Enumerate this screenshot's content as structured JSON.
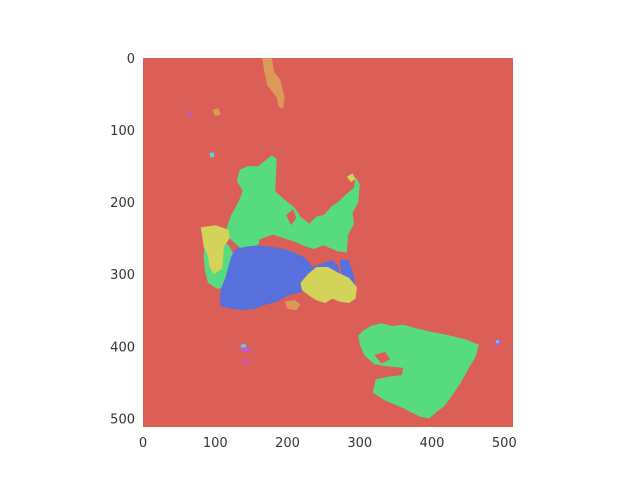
{
  "chart_data": {
    "type": "heatmap",
    "subtype": "segmentation-mask-image",
    "image_size": [
      512,
      512
    ],
    "xlim": [
      0,
      512
    ],
    "ylim": [
      512,
      0
    ],
    "x_ticks": [
      0,
      100,
      200,
      300,
      400,
      500
    ],
    "y_ticks": [
      0,
      100,
      200,
      300,
      400,
      500
    ],
    "x_tick_labels": [
      "0",
      "100",
      "200",
      "300",
      "400",
      "500"
    ],
    "y_tick_labels": [
      "0",
      "100",
      "200",
      "300",
      "400",
      "500"
    ],
    "grid": false,
    "background_class_color": "#db5f57",
    "class_colors": {
      "background": "#db5f57",
      "green": "#57db80",
      "blue": "#5770db",
      "yellow": "#d3d35a",
      "orange": "#db9a57",
      "magenta": "#c157db",
      "cyan": "#57d3db"
    },
    "regions": [
      {
        "class": "orange",
        "points": [
          [
            165,
            0
          ],
          [
            178,
            0
          ],
          [
            182,
            20
          ],
          [
            190,
            30
          ],
          [
            196,
            55
          ],
          [
            194,
            70
          ],
          [
            188,
            68
          ],
          [
            185,
            55
          ],
          [
            180,
            48
          ],
          [
            172,
            38
          ],
          [
            168,
            20
          ]
        ]
      },
      {
        "class": "green",
        "points": [
          [
            134,
            155
          ],
          [
            145,
            150
          ],
          [
            160,
            150
          ],
          [
            178,
            135
          ],
          [
            185,
            140
          ],
          [
            183,
            185
          ],
          [
            200,
            200
          ],
          [
            210,
            208
          ],
          [
            218,
            220
          ],
          [
            230,
            230
          ],
          [
            240,
            220
          ],
          [
            250,
            218
          ],
          [
            262,
            205
          ],
          [
            270,
            200
          ],
          [
            280,
            190
          ],
          [
            292,
            180
          ],
          [
            294,
            165
          ],
          [
            300,
            175
          ],
          [
            298,
            200
          ],
          [
            290,
            215
          ],
          [
            292,
            230
          ],
          [
            284,
            245
          ],
          [
            282,
            270
          ],
          [
            268,
            268
          ],
          [
            262,
            265
          ],
          [
            250,
            260
          ],
          [
            236,
            265
          ],
          [
            226,
            262
          ],
          [
            210,
            255
          ],
          [
            195,
            250
          ],
          [
            180,
            245
          ],
          [
            165,
            250
          ],
          [
            155,
            265
          ],
          [
            145,
            272
          ],
          [
            128,
            258
          ],
          [
            118,
            248
          ],
          [
            116,
            235
          ],
          [
            122,
            218
          ],
          [
            132,
            200
          ],
          [
            138,
            185
          ],
          [
            130,
            170
          ]
        ]
      },
      {
        "class": "background",
        "points": [
          [
            198,
            218
          ],
          [
            208,
            210
          ],
          [
            212,
            222
          ],
          [
            205,
            232
          ]
        ]
      },
      {
        "class": "green",
        "points": [
          [
            85,
            255
          ],
          [
            95,
            250
          ],
          [
            110,
            252
          ],
          [
            120,
            262
          ],
          [
            126,
            275
          ],
          [
            122,
            300
          ],
          [
            114,
            320
          ],
          [
            102,
            320
          ],
          [
            90,
            312
          ],
          [
            86,
            296
          ],
          [
            84,
            278
          ]
        ]
      },
      {
        "class": "yellow",
        "points": [
          [
            80,
            235
          ],
          [
            100,
            232
          ],
          [
            118,
            238
          ],
          [
            120,
            250
          ],
          [
            112,
            262
          ],
          [
            110,
            292
          ],
          [
            98,
            300
          ],
          [
            92,
            290
          ],
          [
            90,
            275
          ],
          [
            84,
            262
          ],
          [
            82,
            248
          ]
        ]
      },
      {
        "class": "background",
        "points": [
          [
            160,
            252
          ],
          [
            170,
            250
          ],
          [
            182,
            258
          ],
          [
            178,
            266
          ],
          [
            165,
            265
          ]
        ]
      },
      {
        "class": "blue",
        "points": [
          [
            128,
            265
          ],
          [
            142,
            262
          ],
          [
            158,
            260
          ],
          [
            175,
            262
          ],
          [
            192,
            264
          ],
          [
            210,
            270
          ],
          [
            225,
            278
          ],
          [
            235,
            290
          ],
          [
            248,
            285
          ],
          [
            262,
            280
          ],
          [
            270,
            288
          ],
          [
            272,
            300
          ],
          [
            268,
            318
          ],
          [
            260,
            323
          ],
          [
            250,
            318
          ],
          [
            240,
            322
          ],
          [
            228,
            320
          ],
          [
            215,
            326
          ],
          [
            200,
            330
          ],
          [
            186,
            338
          ],
          [
            170,
            342
          ],
          [
            155,
            348
          ],
          [
            140,
            350
          ],
          [
            122,
            348
          ],
          [
            108,
            345
          ],
          [
            106,
            335
          ],
          [
            108,
            320
          ],
          [
            114,
            305
          ],
          [
            118,
            290
          ],
          [
            122,
            276
          ]
        ]
      },
      {
        "class": "blue",
        "points": [
          [
            272,
            280
          ],
          [
            284,
            280
          ],
          [
            290,
            295
          ],
          [
            294,
            315
          ],
          [
            290,
            330
          ],
          [
            280,
            330
          ],
          [
            275,
            312
          ],
          [
            274,
            295
          ]
        ]
      },
      {
        "class": "yellow",
        "points": [
          [
            228,
            300
          ],
          [
            240,
            290
          ],
          [
            256,
            290
          ],
          [
            270,
            298
          ],
          [
            285,
            305
          ],
          [
            296,
            318
          ],
          [
            294,
            334
          ],
          [
            285,
            340
          ],
          [
            272,
            338
          ],
          [
            262,
            334
          ],
          [
            252,
            340
          ],
          [
            240,
            336
          ],
          [
            230,
            330
          ],
          [
            220,
            322
          ],
          [
            218,
            312
          ]
        ]
      },
      {
        "class": "orange",
        "points": [
          [
            196,
            338
          ],
          [
            210,
            336
          ],
          [
            218,
            342
          ],
          [
            212,
            350
          ],
          [
            200,
            348
          ]
        ]
      },
      {
        "class": "green",
        "points": [
          [
            305,
            378
          ],
          [
            315,
            372
          ],
          [
            330,
            368
          ],
          [
            345,
            372
          ],
          [
            360,
            370
          ],
          [
            378,
            375
          ],
          [
            398,
            380
          ],
          [
            420,
            384
          ],
          [
            445,
            390
          ],
          [
            465,
            398
          ],
          [
            460,
            415
          ],
          [
            450,
            432
          ],
          [
            440,
            450
          ],
          [
            428,
            468
          ],
          [
            418,
            482
          ],
          [
            408,
            490
          ],
          [
            396,
            500
          ],
          [
            384,
            498
          ],
          [
            372,
            492
          ],
          [
            356,
            484
          ],
          [
            334,
            475
          ],
          [
            318,
            464
          ],
          [
            322,
            446
          ],
          [
            340,
            442
          ],
          [
            358,
            440
          ],
          [
            360,
            430
          ],
          [
            340,
            428
          ],
          [
            320,
            425
          ],
          [
            306,
            412
          ],
          [
            300,
            398
          ],
          [
            298,
            385
          ]
        ]
      },
      {
        "class": "background",
        "points": [
          [
            320,
            412
          ],
          [
            335,
            408
          ],
          [
            342,
            418
          ],
          [
            330,
            424
          ]
        ]
      },
      {
        "class": "magenta",
        "points": [
          [
            486,
            393
          ],
          [
            494,
            390
          ],
          [
            496,
            396
          ],
          [
            490,
            400
          ]
        ]
      },
      {
        "class": "cyan",
        "points": [
          [
            488,
            392
          ],
          [
            492,
            391
          ],
          [
            493,
            395
          ],
          [
            489,
            396
          ]
        ]
      },
      {
        "class": "magenta",
        "points": [
          [
            132,
            403
          ],
          [
            145,
            401
          ],
          [
            152,
            405
          ],
          [
            140,
            408
          ]
        ]
      },
      {
        "class": "magenta",
        "points": [
          [
            138,
            420
          ],
          [
            145,
            419
          ],
          [
            146,
            424
          ],
          [
            139,
            424
          ]
        ]
      },
      {
        "class": "cyan",
        "points": [
          [
            135,
            398
          ],
          [
            142,
            397
          ],
          [
            143,
            401
          ],
          [
            136,
            402
          ]
        ]
      },
      {
        "class": "magenta",
        "points": [
          [
            60,
            75
          ],
          [
            65,
            73
          ],
          [
            67,
            79
          ],
          [
            62,
            80
          ]
        ]
      },
      {
        "class": "orange",
        "points": [
          [
            96,
            72
          ],
          [
            104,
            70
          ],
          [
            108,
            78
          ],
          [
            100,
            81
          ]
        ]
      },
      {
        "class": "cyan",
        "points": [
          [
            92,
            132
          ],
          [
            98,
            131
          ],
          [
            99,
            137
          ],
          [
            93,
            138
          ]
        ]
      },
      {
        "class": "yellow",
        "points": [
          [
            282,
            165
          ],
          [
            290,
            160
          ],
          [
            294,
            168
          ],
          [
            288,
            172
          ]
        ]
      }
    ]
  }
}
